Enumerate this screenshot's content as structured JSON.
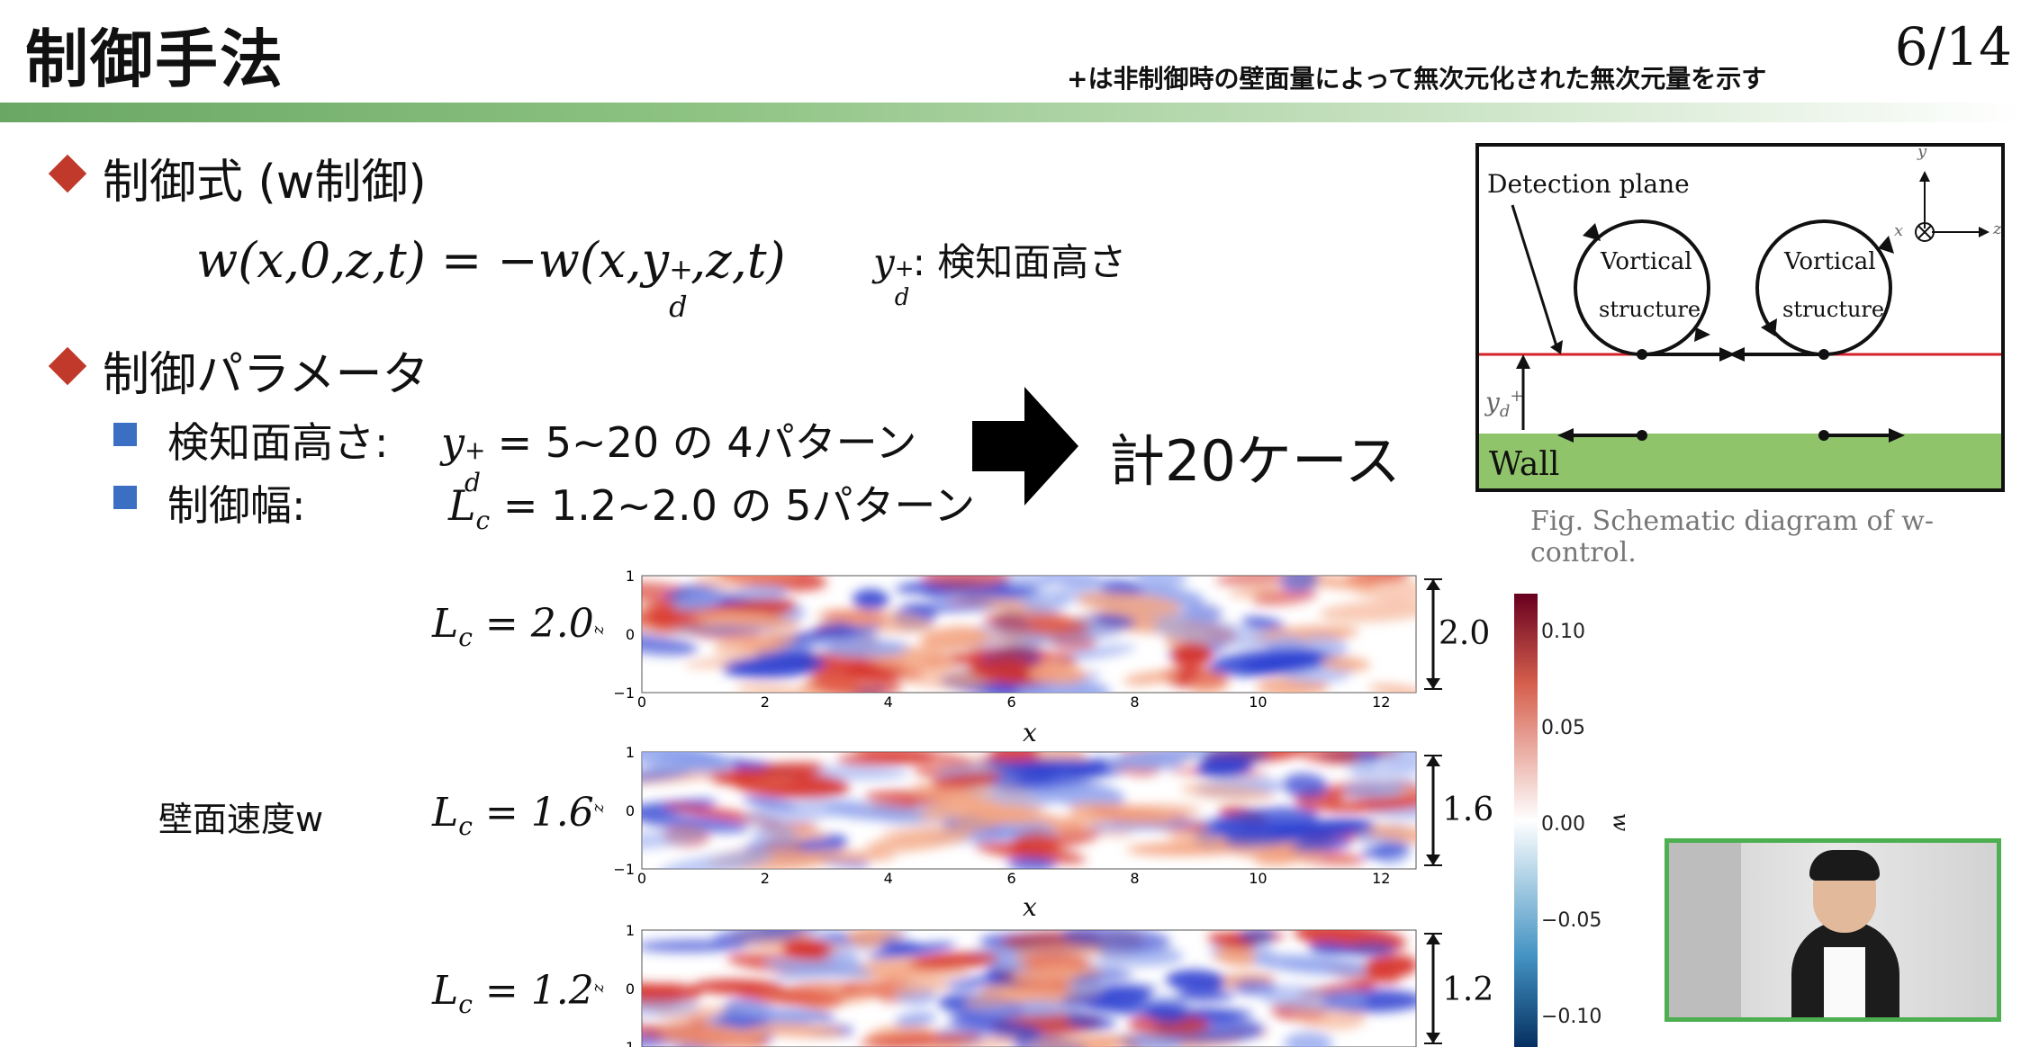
{
  "slide": {
    "title": "制御手法",
    "page": "6/14",
    "note": "+は非制御時の壁面量によって無次元化された無次元量を示す"
  },
  "section1": {
    "heading": "制御式 (w制御)",
    "equation": "w(x,0,z,t) = −w(x,y_d^+,z,t)",
    "eq_note_sym": "y_d^+",
    "eq_note_text": ": 検知面高さ"
  },
  "section2": {
    "heading": "制御パラメータ",
    "items": [
      {
        "label": "検知面高さ:",
        "sym": "y_d^+",
        "value": "= 5~20 の 4パターン"
      },
      {
        "label": "制御幅:",
        "sym": "L_c",
        "value": "= 1.2~2.0 の 5パターン"
      }
    ],
    "result": "計20ケース"
  },
  "schematic": {
    "detection_label": "Detection plane",
    "vortex1_line1": "Vortical",
    "vortex1_line2": "structure",
    "vortex2_line1": "Vortical",
    "vortex2_line2": "structure",
    "wall_label": "Wall",
    "ydplus": "y_d^+",
    "axis_y": "y",
    "axis_x": "x",
    "axis_z": "z",
    "caption": "Fig. Schematic diagram of w-control.",
    "wall_color": "#8fc46a",
    "plane_color": "#d4222a"
  },
  "figure": {
    "side_label": "壁面速度w",
    "x_axis_label": "x",
    "z_axis_label": "z",
    "x_ticks": [
      "0",
      "2",
      "4",
      "6",
      "8",
      "10",
      "12"
    ],
    "z_ticks": [
      "1",
      "0",
      "−1"
    ],
    "panels": [
      {
        "lc_label": "L_c = 2.0",
        "width_label": "2.0"
      },
      {
        "lc_label": "L_c = 1.6",
        "width_label": "1.6"
      },
      {
        "lc_label": "L_c = 1.2",
        "width_label": "1.2"
      }
    ]
  },
  "colorbar": {
    "label": "w",
    "ticks": [
      "0.10",
      "0.05",
      "0.00",
      "−0.05",
      "−0.10"
    ],
    "high_color": "#b2182b",
    "low_color": "#2166ac"
  },
  "webcam": {
    "border_color": "#4caf50"
  }
}
